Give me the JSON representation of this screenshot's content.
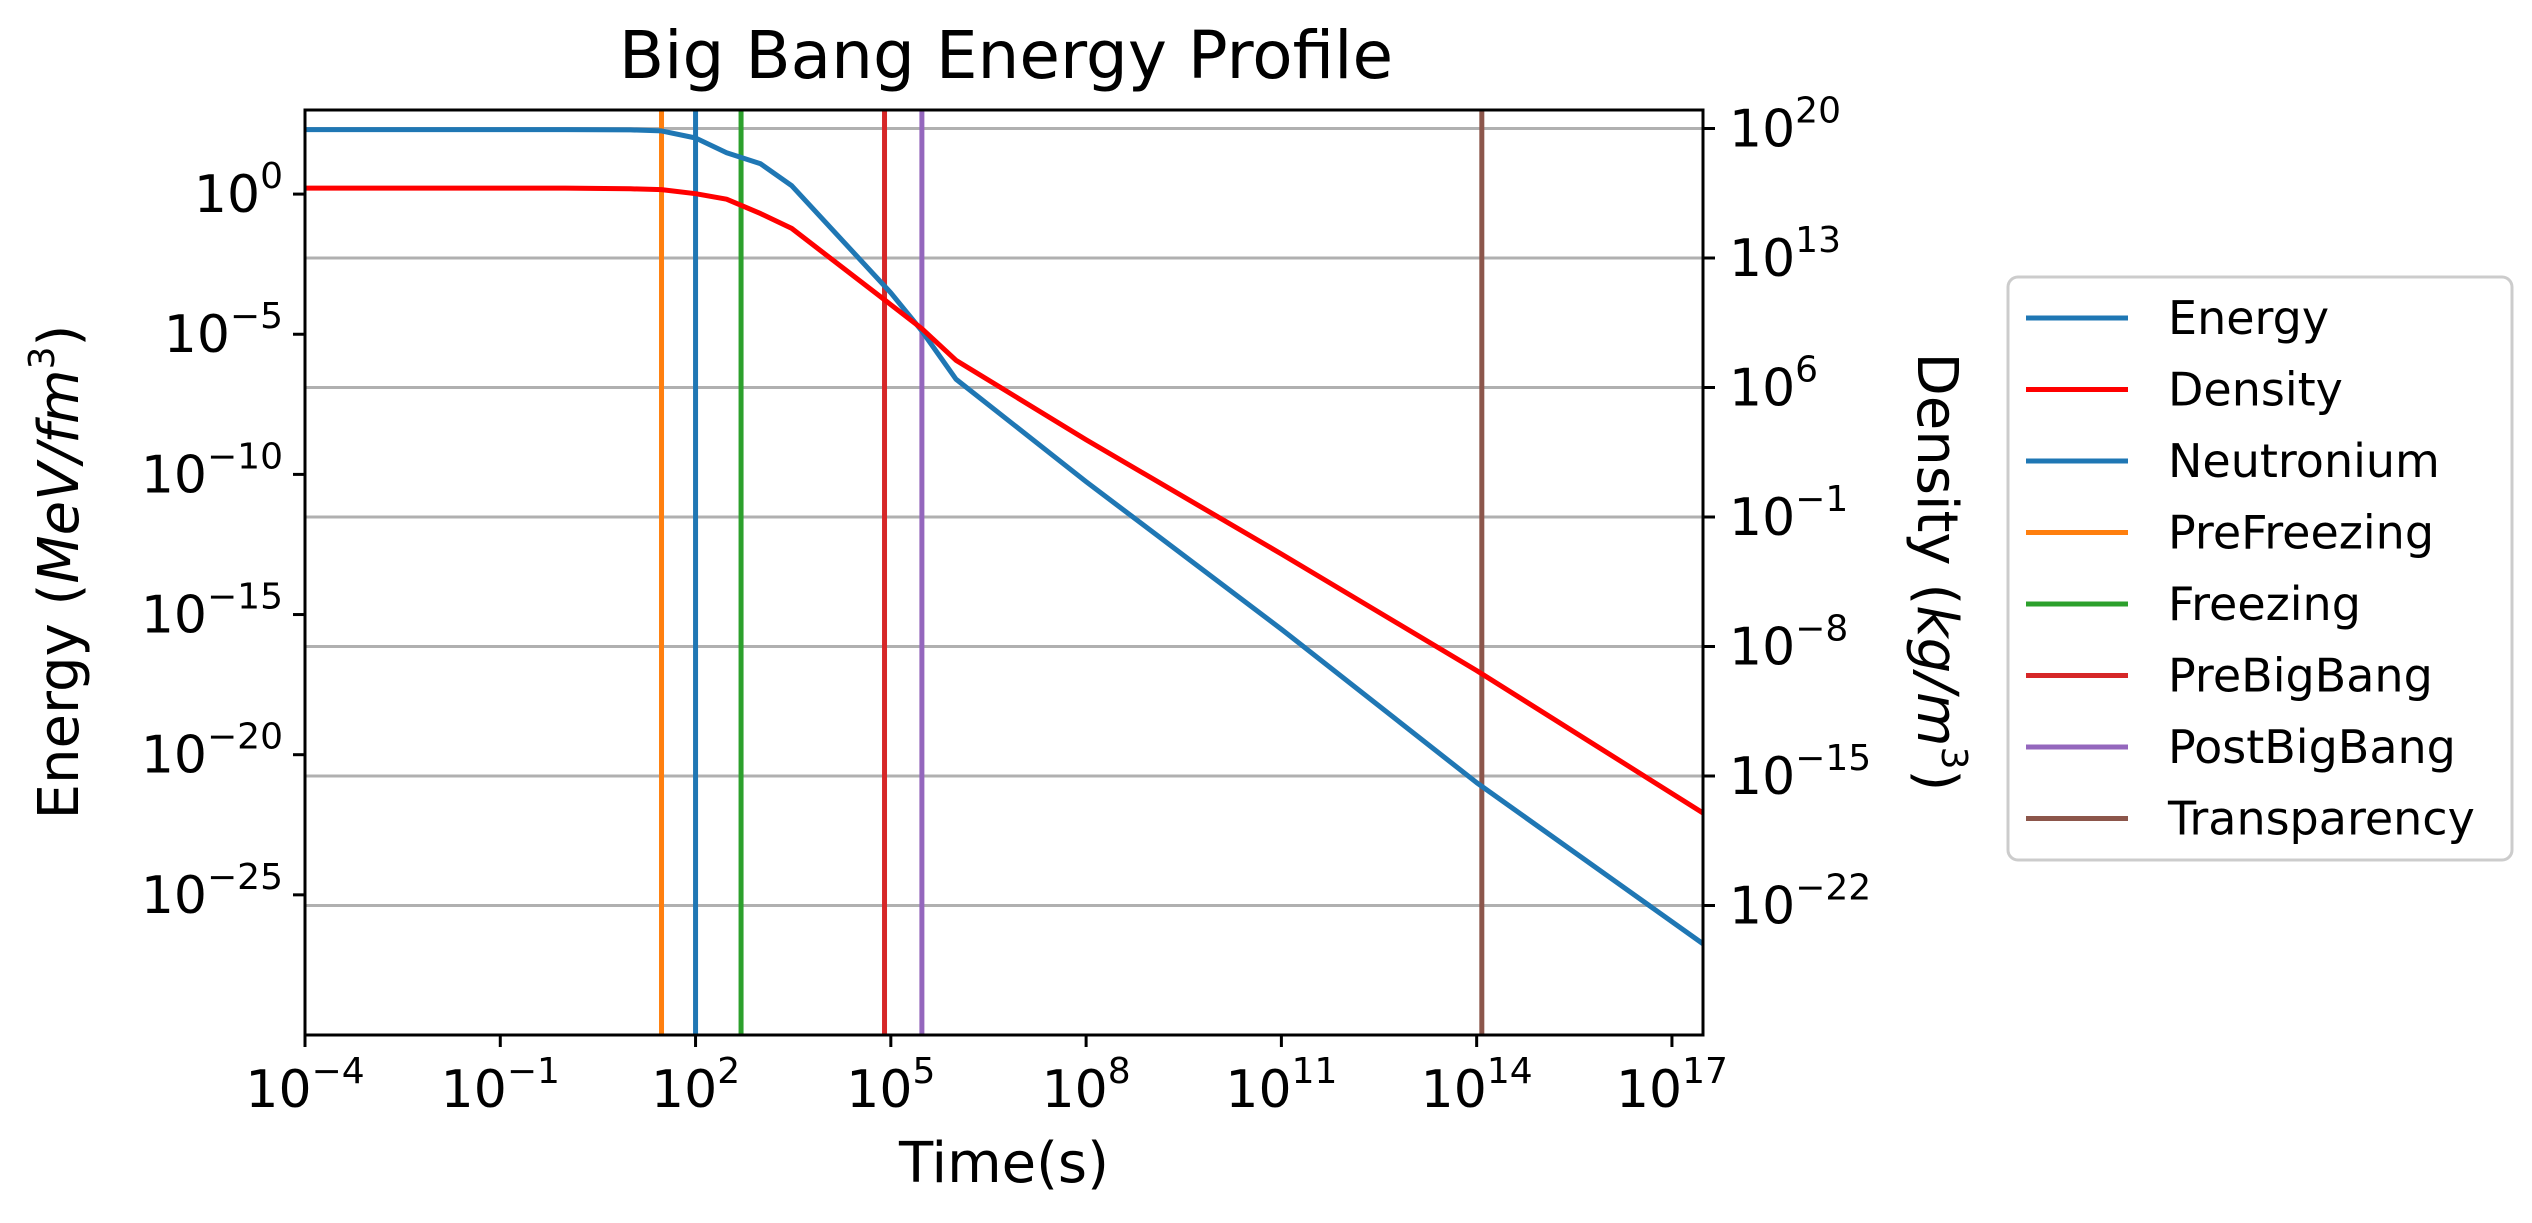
{
  "chart_data": {
    "type": "line",
    "title": "Big Bang Energy Profile",
    "xlabel": "Time(s)",
    "ylabel_left": "Energy ($MeV/fm^3$)",
    "ylabel_right": "Density ($kg/m^3$)",
    "x_scale": "log",
    "y_scale": "log",
    "xlim": [
      0.0001,
      3e+17
    ],
    "ylim_left": [
      1e-30,
      1000.0
    ],
    "ylim_right": [
      1e-29,
      1e+21
    ],
    "grid": "right-axis horizontal",
    "legend_position": "outside right",
    "x_ticks": [
      {
        "base": "10",
        "exp": "−4",
        "value": 0.0001
      },
      {
        "base": "10",
        "exp": "−1",
        "value": 0.1
      },
      {
        "base": "10",
        "exp": "2",
        "value": 100.0
      },
      {
        "base": "10",
        "exp": "5",
        "value": 100000.0
      },
      {
        "base": "10",
        "exp": "8",
        "value": 100000000.0
      },
      {
        "base": "10",
        "exp": "11",
        "value": 100000000000.0
      },
      {
        "base": "10",
        "exp": "14",
        "value": 100000000000000.0
      },
      {
        "base": "10",
        "exp": "17",
        "value": 1e+17
      }
    ],
    "y_left_ticks": [
      {
        "base": "10",
        "exp": "0",
        "value": 1
      },
      {
        "base": "10",
        "exp": "−5",
        "value": 1e-05
      },
      {
        "base": "10",
        "exp": "−10",
        "value": 1e-10
      },
      {
        "base": "10",
        "exp": "−15",
        "value": 1e-15
      },
      {
        "base": "10",
        "exp": "−20",
        "value": 1e-20
      },
      {
        "base": "10",
        "exp": "−25",
        "value": 1e-25
      }
    ],
    "y_right_ticks": [
      {
        "base": "10",
        "exp": "20",
        "value": 1e+20
      },
      {
        "base": "10",
        "exp": "13",
        "value": 10000000000000.0
      },
      {
        "base": "10",
        "exp": "6",
        "value": 1000000.0
      },
      {
        "base": "10",
        "exp": "−1",
        "value": 0.1
      },
      {
        "base": "10",
        "exp": "−8",
        "value": 1e-08
      },
      {
        "base": "10",
        "exp": "−15",
        "value": 1e-15
      },
      {
        "base": "10",
        "exp": "−22",
        "value": 1e-22
      }
    ],
    "series": [
      {
        "name": "Energy",
        "axis": "left",
        "color": "#1f77b4",
        "x": [
          0.0001,
          1,
          10,
          30,
          100,
          300,
          1000,
          3000,
          100000,
          300000,
          1000000,
          100000000.0,
          100000000000.0,
          100000000000000.0,
          3e+17
        ],
        "y": [
          200,
          200,
          195,
          180,
          100,
          30,
          12,
          2,
          0.0003,
          1.3e-05,
          2.5e-07,
          5.5e-11,
          3e-16,
          1e-21,
          1.8e-27
        ]
      },
      {
        "name": "Density",
        "axis": "right",
        "color": "#ff0000",
        "x": [
          0.0001,
          1,
          10,
          30,
          100,
          300,
          1000,
          3000,
          100000,
          300000,
          1000000,
          100000000.0,
          100000000000.0,
          100000000000000.0,
          3e+17
        ],
        "y": [
          6e+16,
          6e+16,
          5.5e+16,
          5e+16,
          3e+16,
          1.5e+16,
          2500000000000000.0,
          400000000000000.0,
          30000000000.0,
          1500000000.0,
          30000000.0,
          1500.0,
          0.001,
          5e-10,
          1e-17
        ]
      }
    ],
    "vlines": [
      {
        "name": "Neutronium",
        "x": 100,
        "color": "#1f77b4"
      },
      {
        "name": "PreFreezing",
        "x": 30,
        "color": "#ff7f0e"
      },
      {
        "name": "Freezing",
        "x": 500,
        "color": "#2ca02c"
      },
      {
        "name": "PreBigBang",
        "x": 80000,
        "color": "#d62728"
      },
      {
        "name": "PostBigBang",
        "x": 300000,
        "color": "#9467bd"
      },
      {
        "name": "Transparency",
        "x": 120000000000000.0,
        "color": "#8c564b"
      }
    ],
    "legend": [
      {
        "label": "Energy",
        "color": "#1f77b4"
      },
      {
        "label": "Density",
        "color": "#ff0000"
      },
      {
        "label": "Neutronium",
        "color": "#1f77b4"
      },
      {
        "label": "PreFreezing",
        "color": "#ff7f0e"
      },
      {
        "label": "Freezing",
        "color": "#2ca02c"
      },
      {
        "label": "PreBigBang",
        "color": "#d62728"
      },
      {
        "label": "PostBigBang",
        "color": "#9467bd"
      },
      {
        "label": "Transparency",
        "color": "#8c564b"
      }
    ]
  }
}
